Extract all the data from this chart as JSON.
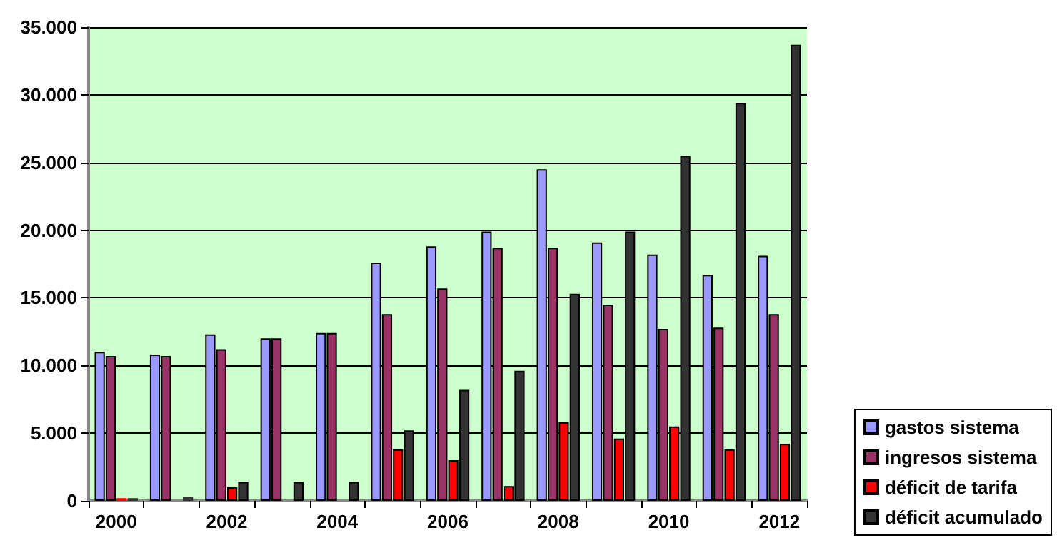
{
  "chart_data": {
    "type": "bar",
    "categories": [
      "2000",
      null,
      "2002",
      null,
      "2004",
      null,
      "2006",
      null,
      "2008",
      null,
      "2010",
      null,
      "2012"
    ],
    "series": [
      {
        "name": "gastos sistema",
        "color": "#9999ff",
        "values": [
          11000,
          10800,
          12300,
          12000,
          12400,
          17600,
          18800,
          19900,
          24500,
          19100,
          18200,
          16700,
          18100
        ]
      },
      {
        "name": "ingresos sistema",
        "color": "#993366",
        "values": [
          10700,
          10700,
          11200,
          12000,
          12400,
          13800,
          15700,
          18700,
          18700,
          14500,
          12700,
          12800,
          13800
        ]
      },
      {
        "name": "déficit de tarifa",
        "color": "#ff0000",
        "values": [
          200,
          0,
          1000,
          0,
          0,
          3800,
          3000,
          1100,
          5800,
          4600,
          5500,
          3800,
          4200
        ]
      },
      {
        "name": "déficit acumulado",
        "color": "#333333",
        "values": [
          200,
          300,
          1400,
          1400,
          1400,
          5200,
          8200,
          9600,
          15300,
          19900,
          25500,
          29400,
          33700
        ]
      }
    ],
    "ylim": [
      0,
      35000
    ],
    "yticks": [
      {
        "value": 0,
        "label": "0"
      },
      {
        "value": 5000,
        "label": "5.000"
      },
      {
        "value": 10000,
        "label": "10.000"
      },
      {
        "value": 15000,
        "label": "15.000"
      },
      {
        "value": 20000,
        "label": "20.000"
      },
      {
        "value": 25000,
        "label": "25.000"
      },
      {
        "value": 30000,
        "label": "30.000"
      },
      {
        "value": 35000,
        "label": "35.000"
      }
    ],
    "grid": "y",
    "legend": "bottom right"
  }
}
